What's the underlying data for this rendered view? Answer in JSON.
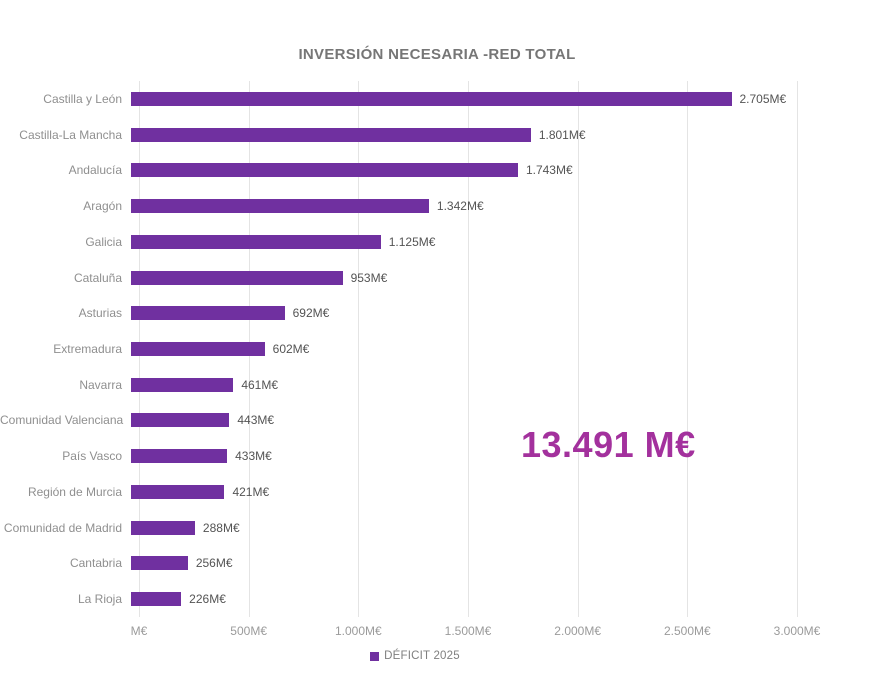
{
  "title": "INVERSIÓN NECESARIA -RED TOTAL",
  "annotation": {
    "text": "13.491 M€",
    "color": "#a3319d"
  },
  "chart_data": {
    "type": "bar",
    "orientation": "horizontal",
    "title": "INVERSIÓN NECESARIA -RED TOTAL",
    "categories": [
      "Castilla y León",
      "Castilla-La Mancha",
      "Andalucía",
      "Aragón",
      "Galicia",
      "Cataluña",
      "Asturias",
      "Extremadura",
      "Navarra",
      "Comunidad Valenciana",
      "País Vasco",
      "Región de Murcia",
      "Comunidad de Madrid",
      "Cantabria",
      "La Rioja"
    ],
    "values": [
      2705,
      1801,
      1743,
      1342,
      1125,
      953,
      692,
      602,
      461,
      443,
      433,
      421,
      288,
      256,
      226
    ],
    "value_labels": [
      "2.705M€",
      "1.801M€",
      "1.743M€",
      "1.342M€",
      "1.125M€",
      "953M€",
      "692M€",
      "602M€",
      "461M€",
      "443M€",
      "433M€",
      "421M€",
      "288M€",
      "256M€",
      "226M€"
    ],
    "xlim": [
      0,
      3000
    ],
    "x_ticks": [
      0,
      500,
      1000,
      1500,
      2000,
      2500,
      3000
    ],
    "x_tick_labels": [
      "M€",
      "500M€",
      "1.000M€",
      "1.500M€",
      "2.000M€",
      "2.500M€",
      "3.000M€"
    ],
    "grid": "vertical",
    "bar_color": "#7030a0",
    "legend_position": "bottom",
    "legend": [
      {
        "label": "DÉFICIT 2025",
        "color": "#7030a0"
      }
    ],
    "total_annotation": "13.491 M€"
  }
}
